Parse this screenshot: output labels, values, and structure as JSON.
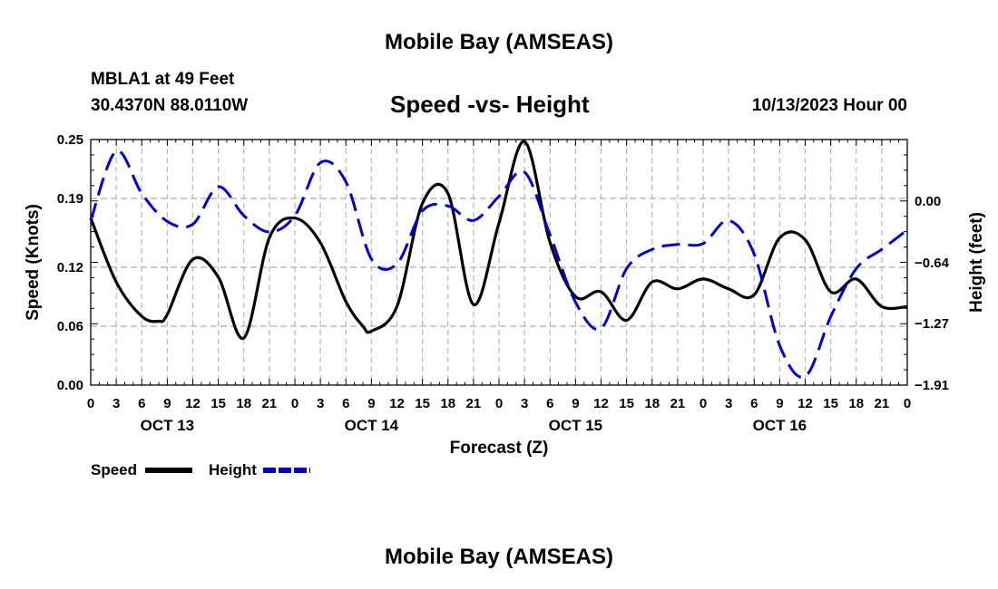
{
  "page": {
    "title": "Mobile Bay (AMSEAS)",
    "footer_title": "Mobile Bay (AMSEAS)",
    "station": "MBLA1 at 49 Feet",
    "location": "30.4370N  88.0110W",
    "subtitle": "Speed -vs- Height",
    "run_time": "10/13/2023 Hour 00"
  },
  "chart_data": {
    "type": "line",
    "title": "Speed -vs- Height",
    "xlabel": "Forecast (Z)",
    "ylabel": "Speed (Knots)",
    "y2label": "Height (feet)",
    "xlim": [
      0,
      96
    ],
    "ylim": [
      0,
      0.25
    ],
    "y2lim": [
      -1.91,
      0.64
    ],
    "x_ticks": [
      0,
      3,
      6,
      9,
      12,
      15,
      18,
      21,
      24,
      27,
      30,
      33,
      36,
      39,
      42,
      45,
      48,
      51,
      54,
      57,
      60,
      63,
      66,
      69,
      72,
      75,
      78,
      81,
      84,
      87,
      90,
      93,
      96
    ],
    "x_tick_labels": [
      "0",
      "3",
      "6",
      "9",
      "12",
      "15",
      "18",
      "21",
      "0",
      "3",
      "6",
      "9",
      "12",
      "15",
      "18",
      "21",
      "0",
      "3",
      "6",
      "9",
      "12",
      "15",
      "18",
      "21",
      "0",
      "3",
      "6",
      "9",
      "12",
      "15",
      "18",
      "21",
      "0"
    ],
    "day_labels": [
      {
        "x": 9,
        "label": "OCT 13"
      },
      {
        "x": 33,
        "label": "OCT 14"
      },
      {
        "x": 57,
        "label": "OCT 15"
      },
      {
        "x": 81,
        "label": "OCT 16"
      }
    ],
    "y_ticks": [
      0.0,
      0.06,
      0.12,
      0.19,
      0.25
    ],
    "y_tick_labels": [
      "0.00",
      "0.06",
      "0.12",
      "0.19",
      "0.25"
    ],
    "y2_ticks": [
      0.0,
      -0.64,
      -1.27,
      -1.91
    ],
    "y2_tick_labels": [
      "0.00",
      "-0.64",
      "-1.27",
      "-1.91"
    ],
    "grid": true,
    "legend_position": "bottom-left",
    "series": [
      {
        "name": "Speed",
        "axis": "left",
        "color": "#000000",
        "style": "solid",
        "x": [
          0,
          3,
          6,
          8,
          9,
          12,
          15,
          18,
          21,
          24,
          27,
          30,
          32,
          33,
          36,
          39,
          42,
          45,
          48,
          51,
          54,
          57,
          60,
          63,
          66,
          69,
          72,
          75,
          78,
          81,
          84,
          87,
          90,
          93,
          96
        ],
        "values": [
          0.17,
          0.105,
          0.07,
          0.065,
          0.072,
          0.128,
          0.11,
          0.048,
          0.15,
          0.17,
          0.145,
          0.085,
          0.06,
          0.055,
          0.08,
          0.185,
          0.195,
          0.082,
          0.165,
          0.248,
          0.145,
          0.09,
          0.095,
          0.066,
          0.105,
          0.098,
          0.108,
          0.098,
          0.092,
          0.15,
          0.148,
          0.095,
          0.108,
          0.08,
          0.08
        ]
      },
      {
        "name": "Height",
        "axis": "right",
        "color": "#0000cc",
        "style": "dashed",
        "x": [
          0,
          3,
          6,
          9,
          12,
          15,
          18,
          21,
          24,
          27,
          30,
          33,
          36,
          39,
          42,
          45,
          48,
          51,
          54,
          57,
          60,
          63,
          66,
          69,
          72,
          75,
          78,
          81,
          84,
          87,
          90,
          93,
          96
        ],
        "values": [
          -0.2,
          0.52,
          0.08,
          -0.21,
          -0.24,
          0.15,
          -0.15,
          -0.32,
          -0.15,
          0.4,
          0.2,
          -0.6,
          -0.65,
          -0.1,
          -0.05,
          -0.2,
          0.05,
          0.3,
          -0.35,
          -1.05,
          -1.32,
          -0.7,
          -0.5,
          -0.45,
          -0.44,
          -0.2,
          -0.55,
          -1.5,
          -1.82,
          -1.2,
          -0.7,
          -0.5,
          -0.3
        ]
      }
    ]
  }
}
